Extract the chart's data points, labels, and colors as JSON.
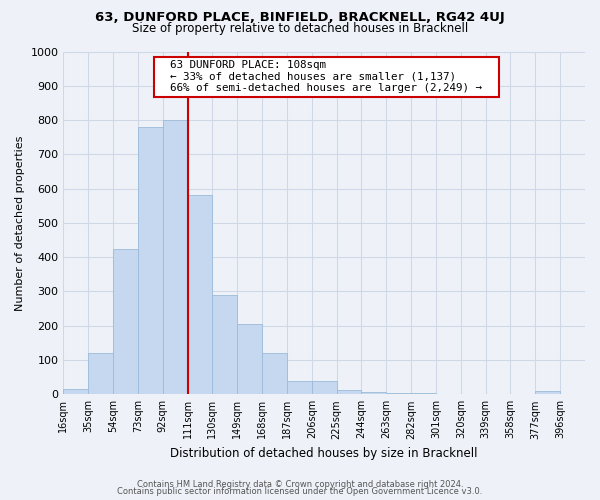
{
  "title": "63, DUNFORD PLACE, BINFIELD, BRACKNELL, RG42 4UJ",
  "subtitle": "Size of property relative to detached houses in Bracknell",
  "xlabel": "Distribution of detached houses by size in Bracknell",
  "ylabel": "Number of detached properties",
  "bar_labels": [
    "16sqm",
    "35sqm",
    "54sqm",
    "73sqm",
    "92sqm",
    "111sqm",
    "130sqm",
    "149sqm",
    "168sqm",
    "187sqm",
    "206sqm",
    "225sqm",
    "244sqm",
    "263sqm",
    "282sqm",
    "301sqm",
    "320sqm",
    "339sqm",
    "358sqm",
    "377sqm",
    "396sqm"
  ],
  "bar_values": [
    15,
    120,
    425,
    780,
    800,
    580,
    290,
    205,
    120,
    40,
    40,
    12,
    8,
    5,
    3,
    2,
    2,
    2,
    2,
    10
  ],
  "bar_color": "#c5d8f0",
  "bar_edge_color": "#9bbbd8",
  "vline_color": "#cc0000",
  "annotation_title": "63 DUNFORD PLACE: 108sqm",
  "annotation_line1": "← 33% of detached houses are smaller (1,137)",
  "annotation_line2": "66% of semi-detached houses are larger (2,249) →",
  "annotation_box_facecolor": "#ffffff",
  "annotation_box_edgecolor": "#cc0000",
  "ylim": [
    0,
    1000
  ],
  "yticks": [
    0,
    100,
    200,
    300,
    400,
    500,
    600,
    700,
    800,
    900,
    1000
  ],
  "footer_line1": "Contains HM Land Registry data © Crown copyright and database right 2024.",
  "footer_line2": "Contains public sector information licensed under the Open Government Licence v3.0.",
  "background_color": "#eef2f8",
  "grid_color": "#d0d8e8",
  "vline_x_index": 5
}
